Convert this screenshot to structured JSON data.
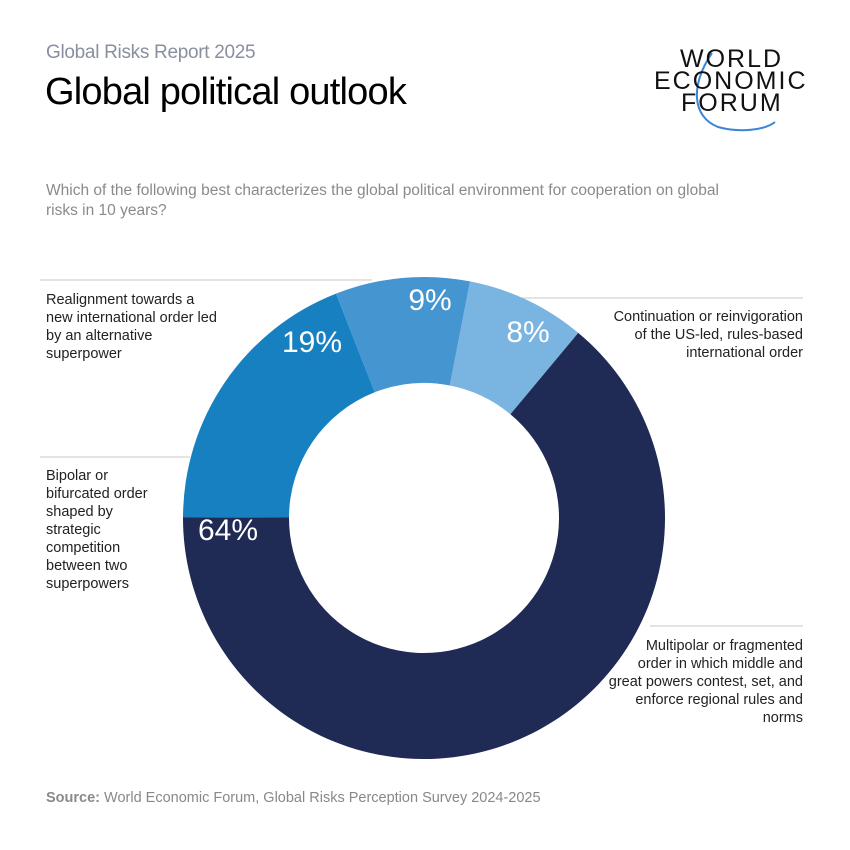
{
  "header": {
    "kicker": "Global Risks Report 2025",
    "title": "Global political outlook",
    "question": "Which of the following best characterizes the global political environment for cooperation on global risks in 10 years?"
  },
  "logo": {
    "lines": [
      "WORLD",
      "ECONOMIC",
      "FORUM"
    ],
    "accent": "#3a86d6"
  },
  "chart_data": {
    "type": "pie",
    "donut": true,
    "order": "clockwise",
    "slices": [
      {
        "label": "Continuation or reinvigoration of the US-led, rules-based international order",
        "value": 8,
        "display": "8%",
        "color": "#7ab4e1"
      },
      {
        "label": "Multipolar or fragmented order in which middle and great powers contest, set, and enforce regional rules and norms",
        "value": 64,
        "display": "64%",
        "color": "#1f2a55"
      },
      {
        "label": "Bipolar or bifurcated order shaped by strategic competition between two superpowers",
        "value": 19,
        "display": "19%",
        "color": "#1780c1"
      },
      {
        "label": "Realignment towards a new international order led by an alternative superpower",
        "value": 9,
        "display": "9%",
        "color": "#4595d1"
      }
    ]
  },
  "source": {
    "label": "Source:",
    "text": " World Economic Forum, Global Risks Perception Survey 2024-2025"
  }
}
